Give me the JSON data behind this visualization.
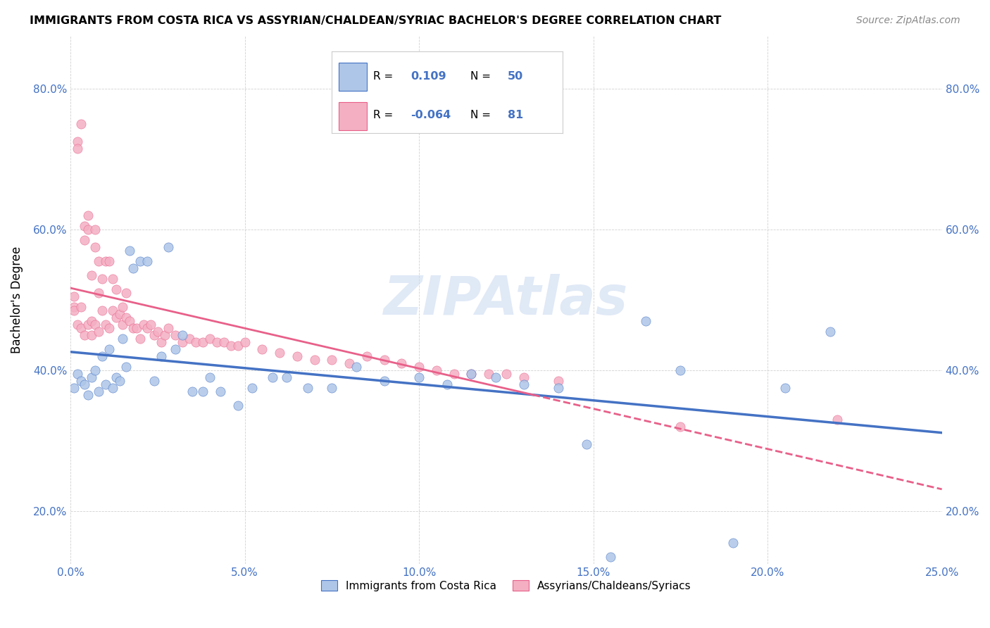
{
  "title": "IMMIGRANTS FROM COSTA RICA VS ASSYRIAN/CHALDEAN/SYRIAC BACHELOR'S DEGREE CORRELATION CHART",
  "source": "Source: ZipAtlas.com",
  "ylabel": "Bachelor's Degree",
  "xlim": [
    0.0,
    0.25
  ],
  "ylim": [
    0.125,
    0.875
  ],
  "xticks": [
    0.0,
    0.05,
    0.1,
    0.15,
    0.2,
    0.25
  ],
  "xticklabels": [
    "0.0%",
    "5.0%",
    "10.0%",
    "15.0%",
    "20.0%",
    "25.0%"
  ],
  "yticks": [
    0.2,
    0.4,
    0.6,
    0.8
  ],
  "yticklabels": [
    "20.0%",
    "40.0%",
    "60.0%",
    "80.0%"
  ],
  "blue_R": 0.109,
  "blue_N": 50,
  "pink_R": -0.064,
  "pink_N": 81,
  "blue_color": "#aec6e8",
  "pink_color": "#f4afc3",
  "blue_line_color": "#4472c4",
  "pink_line_color": "#e8608a",
  "watermark": "ZIPAtlas",
  "watermark_color": "#c8d8f0",
  "legend_label_blue": "Immigrants from Costa Rica",
  "legend_label_pink": "Assyrians/Chaldeans/Syriacs",
  "blue_x": [
    0.001,
    0.002,
    0.003,
    0.004,
    0.005,
    0.006,
    0.007,
    0.008,
    0.009,
    0.01,
    0.011,
    0.012,
    0.013,
    0.014,
    0.015,
    0.016,
    0.017,
    0.018,
    0.02,
    0.022,
    0.024,
    0.026,
    0.028,
    0.03,
    0.032,
    0.035,
    0.038,
    0.04,
    0.043,
    0.048,
    0.052,
    0.058,
    0.062,
    0.068,
    0.075,
    0.082,
    0.09,
    0.1,
    0.108,
    0.115,
    0.122,
    0.13,
    0.14,
    0.148,
    0.155,
    0.165,
    0.175,
    0.19,
    0.205,
    0.218
  ],
  "blue_y": [
    0.375,
    0.395,
    0.385,
    0.38,
    0.365,
    0.39,
    0.4,
    0.37,
    0.42,
    0.38,
    0.43,
    0.375,
    0.39,
    0.385,
    0.445,
    0.405,
    0.57,
    0.545,
    0.555,
    0.555,
    0.385,
    0.42,
    0.575,
    0.43,
    0.45,
    0.37,
    0.37,
    0.39,
    0.37,
    0.35,
    0.375,
    0.39,
    0.39,
    0.375,
    0.375,
    0.405,
    0.385,
    0.39,
    0.38,
    0.395,
    0.39,
    0.38,
    0.375,
    0.295,
    0.135,
    0.47,
    0.4,
    0.155,
    0.375,
    0.455
  ],
  "pink_x": [
    0.001,
    0.001,
    0.001,
    0.002,
    0.002,
    0.002,
    0.003,
    0.003,
    0.003,
    0.004,
    0.004,
    0.004,
    0.005,
    0.005,
    0.005,
    0.006,
    0.006,
    0.006,
    0.007,
    0.007,
    0.007,
    0.008,
    0.008,
    0.008,
    0.009,
    0.009,
    0.01,
    0.01,
    0.011,
    0.011,
    0.012,
    0.012,
    0.013,
    0.013,
    0.014,
    0.015,
    0.015,
    0.016,
    0.016,
    0.017,
    0.018,
    0.019,
    0.02,
    0.021,
    0.022,
    0.023,
    0.024,
    0.025,
    0.026,
    0.027,
    0.028,
    0.03,
    0.032,
    0.034,
    0.036,
    0.038,
    0.04,
    0.042,
    0.044,
    0.046,
    0.048,
    0.05,
    0.055,
    0.06,
    0.065,
    0.07,
    0.075,
    0.08,
    0.085,
    0.09,
    0.095,
    0.1,
    0.105,
    0.11,
    0.115,
    0.12,
    0.125,
    0.13,
    0.14,
    0.175,
    0.22
  ],
  "pink_y": [
    0.505,
    0.49,
    0.485,
    0.725,
    0.715,
    0.465,
    0.75,
    0.49,
    0.46,
    0.605,
    0.585,
    0.45,
    0.62,
    0.6,
    0.465,
    0.535,
    0.47,
    0.45,
    0.6,
    0.575,
    0.465,
    0.555,
    0.51,
    0.455,
    0.53,
    0.485,
    0.555,
    0.465,
    0.555,
    0.46,
    0.53,
    0.485,
    0.515,
    0.475,
    0.48,
    0.49,
    0.465,
    0.51,
    0.475,
    0.47,
    0.46,
    0.46,
    0.445,
    0.465,
    0.46,
    0.465,
    0.45,
    0.455,
    0.44,
    0.45,
    0.46,
    0.45,
    0.44,
    0.445,
    0.44,
    0.44,
    0.445,
    0.44,
    0.44,
    0.435,
    0.435,
    0.44,
    0.43,
    0.425,
    0.42,
    0.415,
    0.415,
    0.41,
    0.42,
    0.415,
    0.41,
    0.405,
    0.4,
    0.395,
    0.395,
    0.395,
    0.395,
    0.39,
    0.385,
    0.32,
    0.33
  ]
}
